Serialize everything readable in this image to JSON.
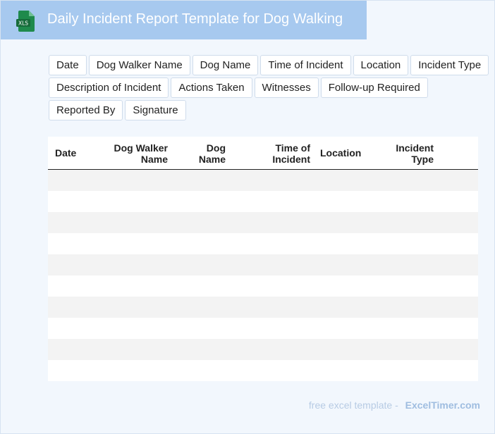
{
  "header": {
    "title": "Daily Incident Report Template for Dog Walking",
    "icon_label": "XLS",
    "icon_color": "#1f8a4c"
  },
  "tags": [
    "Date",
    "Dog Walker Name",
    "Dog Name",
    "Time of Incident",
    "Location",
    "Incident Type",
    "Description of Incident",
    "Actions Taken",
    "Witnesses",
    "Follow-up Required",
    "Reported By",
    "Signature"
  ],
  "table": {
    "columns": [
      {
        "line1": "Date",
        "line2": ""
      },
      {
        "line1": "Dog Walker",
        "line2": "Name"
      },
      {
        "line1": "Dog",
        "line2": "Name"
      },
      {
        "line1": "Time of",
        "line2": "Incident"
      },
      {
        "line1": "Location",
        "line2": ""
      },
      {
        "line1": "Incident",
        "line2": "Type"
      }
    ],
    "row_count": 10
  },
  "footer": {
    "prefix": "free excel template -",
    "brand": "ExcelTimer.com"
  }
}
